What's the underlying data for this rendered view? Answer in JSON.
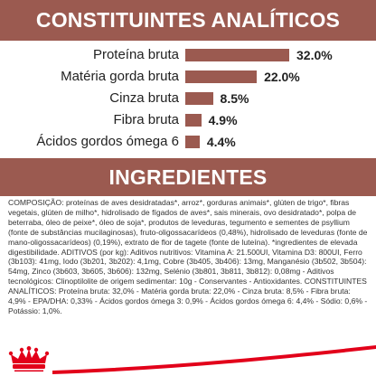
{
  "sections": {
    "analytics_title": "CONSTITUINTES ANALÍTICOS",
    "ingredients_title": "INGREDIENTES"
  },
  "chart_data": {
    "type": "bar",
    "orientation": "horizontal",
    "categories": [
      "Proteína bruta",
      "Matéria gorda bruta",
      "Cinza bruta",
      "Fibra bruta",
      "Ácidos gordos ómega 6"
    ],
    "values": [
      32.0,
      22.0,
      8.5,
      4.9,
      4.4
    ],
    "value_labels": [
      "32.0%",
      "22.0%",
      "8.5%",
      "4.9%",
      "4.4%"
    ],
    "unit": "%",
    "bar_color": "#9b5a50",
    "grid": false
  },
  "ingredients": {
    "text": "COMPOSIÇÃO: proteínas de aves desidratadas*, arroz*, gorduras animais*, glúten de trigo*, fibras vegetais, glúten de milho*, hidrolisado de fígados de aves*, sais minerais, ovo desidratado*, polpa de beterraba, óleo de peixe*, óleo de soja*, produtos de leveduras, tegumento e sementes de psyllium (fonte de substâncias mucilaginosas), fruto-oligossacarídeos (0,48%), hidrolisado de leveduras (fonte de mano-oligossacarídeos) (0,19%), extrato de flor de tagete (fonte de luteína). *ingredientes de elevada digestibilidade. ADITIVOS (por kg): Aditivos nutritivos: Vitamina A: 21.500UI, Vitamina D3: 800UI, Ferro (3b103): 41mg, Iodo (3b201, 3b202): 4,1mg, Cobre (3b405, 3b406): 13mg, Manganésio (3b502, 3b504): 54mg, Zinco (3b603, 3b605, 3b606): 132mg, Selénio (3b801, 3b811, 3b812): 0,08mg - Aditivos tecnológicos: Clinoptilolite de origem sedimentar: 10g - Conservantes - Antioxidantes. CONSTITUINTES ANALÍTICOS: Proteína bruta: 32,0% - Matéria gorda bruta: 22,0% - Cinza bruta: 8,5% - Fibra bruta: 4,9% - EPA/DHA: 0,33% - Ácidos gordos ómega 3: 0,9% - Ácidos gordos ómega 6: 4,4% - Sódio: 0,6% - Potássio: 1,0%."
  },
  "brand": {
    "primary_color": "#9b5a50",
    "logo_color": "#e2001a",
    "logo_icon": "crown-icon"
  }
}
